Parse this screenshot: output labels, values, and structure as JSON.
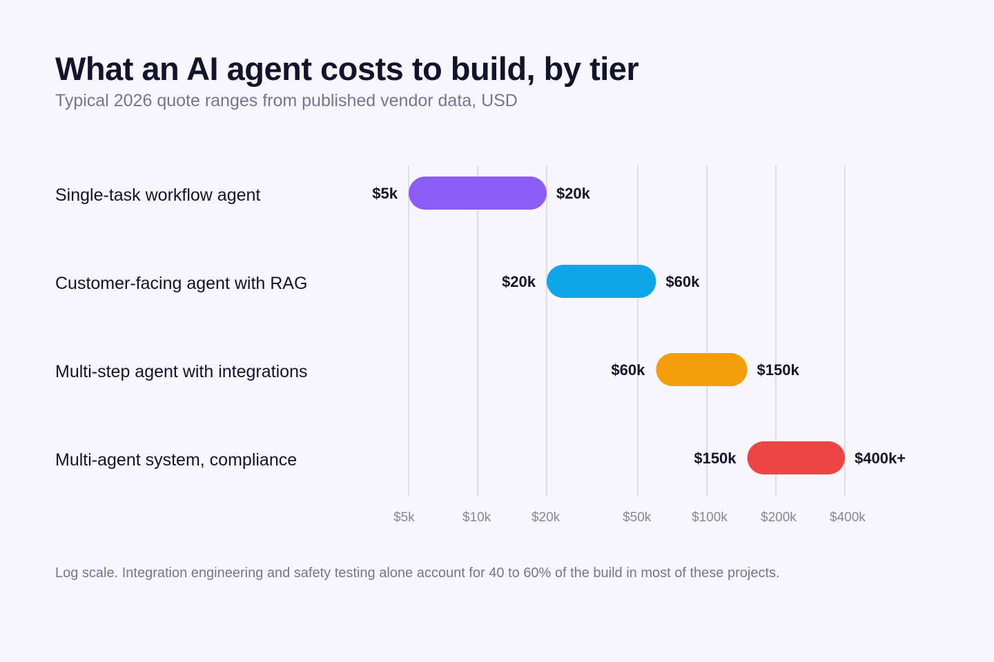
{
  "title": "What an AI agent costs to build, by tier",
  "subtitle": "Typical 2026 quote ranges from published vendor data, USD",
  "footnote": "Log scale. Integration engineering and safety testing alone account for 40 to 60% of the build in most of these projects.",
  "chart_data": {
    "type": "bar",
    "orientation": "horizontal-range",
    "scale": "log",
    "categories": [
      "Single-task workflow agent",
      "Customer-facing agent with RAG",
      "Multi-step agent with integrations",
      "Multi-agent system, compliance"
    ],
    "ranges": [
      {
        "low": 5000,
        "high": 20000,
        "low_label": "$5k",
        "high_label": "$20k",
        "color": "#8b5cf6"
      },
      {
        "low": 20000,
        "high": 60000,
        "low_label": "$20k",
        "high_label": "$60k",
        "color": "#0ea5e9"
      },
      {
        "low": 60000,
        "high": 150000,
        "low_label": "$60k",
        "high_label": "$150k",
        "color": "#f59e0b"
      },
      {
        "low": 150000,
        "high": 400000,
        "low_label": "$150k",
        "high_label": "$400k+",
        "color": "#ef4444"
      }
    ],
    "xticks": [
      {
        "value": 5000,
        "label": "$5k"
      },
      {
        "value": 10000,
        "label": "$10k"
      },
      {
        "value": 20000,
        "label": "$20k"
      },
      {
        "value": 50000,
        "label": "$50k"
      },
      {
        "value": 100000,
        "label": "$100k"
      },
      {
        "value": 200000,
        "label": "$200k"
      },
      {
        "value": 400000,
        "label": "$400k"
      }
    ],
    "xlim": [
      5000,
      400000
    ],
    "grid": true,
    "colors": {
      "grid": "#dcdcea",
      "label": "#13132b",
      "tick": "#868699"
    }
  }
}
